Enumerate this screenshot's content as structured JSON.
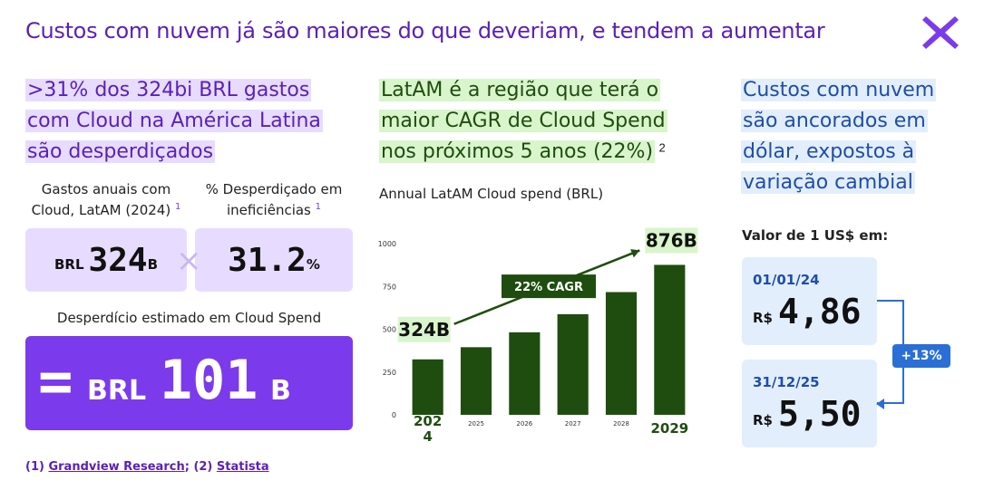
{
  "title": "Custos com nuvem já são maiores do que deveriam, e tendem a aumentar",
  "logo_icon": "x-logo-icon",
  "colors": {
    "brand_purple": "#7c3aed",
    "dark_purple": "#5b21b6",
    "bar_green": "#1f4d0f",
    "light_green": "#d9f5cc",
    "blue": "#2b6fd6"
  },
  "col1": {
    "headline": ">31% dos 324bi BRL gastos com Cloud na América Latina são desperdiçados",
    "stat1_label": "Gastos anuais com Cloud, LatAM (2024)",
    "stat1_ref": "1",
    "stat1_prefix": "BRL",
    "stat1_value": "324",
    "stat1_unit": "B",
    "times_symbol": "×",
    "stat2_label": "% Desperdiçado em ineficiências",
    "stat2_ref": "1",
    "stat2_value": "31.2",
    "stat2_unit": "%",
    "waste_label": "Desperdício estimado em Cloud Spend",
    "waste_eq": "=",
    "waste_prefix": "BRL",
    "waste_value": "101",
    "waste_unit": "B"
  },
  "footnote": {
    "ref1": "(1)",
    "src1": "Grandview Research",
    "sep": ";",
    "ref2": "(2)",
    "src2": "Statista"
  },
  "col2": {
    "headline": "LatAM é a região que terá o maior CAGR de Cloud Spend nos próximos 5 anos (22%)",
    "headline_ref": "2",
    "chart_title": "Annual LatAM Cloud spend (BRL)"
  },
  "chart_data": {
    "type": "bar",
    "title": "Annual LatAM Cloud spend (BRL)",
    "categories": [
      "2024",
      "2025",
      "2026",
      "2027",
      "2028",
      "2029"
    ],
    "values": [
      324,
      395,
      482,
      588,
      717,
      876
    ],
    "ylim": [
      0,
      1000
    ],
    "yticks": [
      0,
      250,
      500,
      750,
      1000
    ],
    "grid": false,
    "annotations": {
      "start_label": "324B",
      "end_label": "876B",
      "cagr_label": "22% CAGR"
    },
    "highlight_tick_labels": [
      "2024",
      "2029"
    ]
  },
  "col3": {
    "headline": "Custos com nuvem são ancorados em dólar, expostos à variação cambial",
    "fx_label": "Valor de 1 US$ em:",
    "card1_date": "01/01/24",
    "card1_currency": "R$",
    "card1_value": "4,86",
    "card2_date": "31/12/25",
    "card2_currency": "R$",
    "card2_value": "5,50",
    "change_badge": "+13%"
  }
}
